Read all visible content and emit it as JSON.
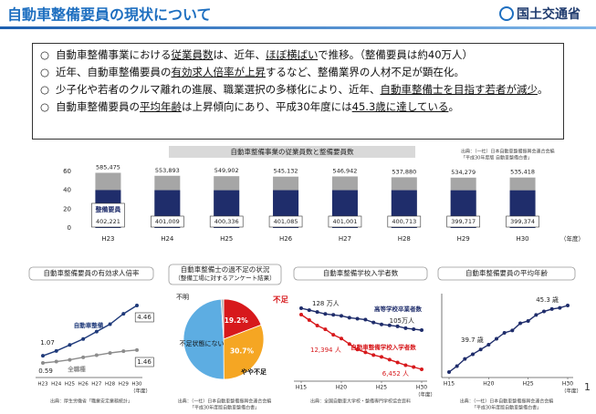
{
  "header": {
    "title": "自動車整備要員の現状について",
    "logo": "国土交通省"
  },
  "bullets": [
    {
      "runs": [
        {
          "text": "自動車整備事業における"
        },
        {
          "text": "従業員数",
          "underline": true
        },
        {
          "text": "は、近年、"
        },
        {
          "text": "ほぼ横ばい",
          "underline": true
        },
        {
          "text": "で推移。（整備要員は約40万人）"
        }
      ]
    },
    {
      "runs": [
        {
          "text": "近年、自動車整備要員の"
        },
        {
          "text": "有効求人倍率が上昇",
          "underline": true
        },
        {
          "text": "するなど、整備業界の人材不足が顕在化。"
        }
      ]
    },
    {
      "runs": [
        {
          "text": "少子化や若者のクルマ離れの進展、職業選択の多様化により、近年、"
        },
        {
          "text": "自動車整備士を目指す若者が減少",
          "underline": true
        },
        {
          "text": "。"
        }
      ]
    },
    {
      "runs": [
        {
          "text": "自動車整備要員の"
        },
        {
          "text": "平均年齢",
          "underline": true
        },
        {
          "text": "は上昇傾向にあり、平成30年度には"
        },
        {
          "text": "45.3歳に達している",
          "underline": true
        },
        {
          "text": "。"
        }
      ]
    }
  ],
  "chart_data": [
    {
      "type": "bar",
      "title": "自動車整備事業の従業員数と整備要員数",
      "source": [
        "出典：（一社）日本自動車整備振興会連合会編",
        "「平成30年度版 自動車整備白書」"
      ],
      "categories": [
        "H23",
        "H24",
        "H25",
        "H26",
        "H27",
        "H28",
        "H29",
        "H30"
      ],
      "x_unit": "（年度）",
      "ylim": [
        0,
        60
      ],
      "yticks": [
        0,
        20,
        40,
        60
      ],
      "series": [
        {
          "color": "#a6a6a6",
          "values": [
            58.5475,
            55.3893,
            54.9902,
            54.5132,
            54.6942,
            53.788,
            53.4279,
            53.5418
          ],
          "value_labels": [
            "585,475",
            "553,893",
            "549,902",
            "545,132",
            "546,942",
            "537,880",
            "534,279",
            "535,418"
          ]
        },
        {
          "name": "整備要員",
          "color": "#1f2d6b",
          "values": [
            40.2221,
            40.1009,
            40.0336,
            40.1085,
            40.1001,
            40.0713,
            39.9717,
            39.9374
          ],
          "value_labels": [
            "402,221",
            "401,009",
            "400,336",
            "401,085",
            "401,001",
            "400,713",
            "399,717",
            "399,374"
          ]
        }
      ]
    },
    {
      "type": "line",
      "title": "自動車整備要員の有効求人倍率",
      "source": [
        "出典：厚生労働省「職業安定業務統計」"
      ],
      "categories": [
        "H23",
        "H24",
        "H25",
        "H26",
        "H27",
        "H28",
        "H29",
        "H30"
      ],
      "x_unit": "（年度）",
      "series": [
        {
          "name": "自動車整備",
          "color": "#1f3a7a",
          "values": [
            1.07,
            1.4,
            1.8,
            2.2,
            2.7,
            3.2,
            3.9,
            4.46
          ],
          "value_labels": [
            "1.07",
            null,
            null,
            null,
            null,
            null,
            null,
            "4.46"
          ]
        },
        {
          "name": "全職種",
          "color": "#8c8c8c",
          "values": [
            0.59,
            0.68,
            0.8,
            0.97,
            1.11,
            1.26,
            1.38,
            1.46
          ],
          "value_labels": [
            "0.59",
            null,
            null,
            null,
            null,
            null,
            null,
            "1.46"
          ]
        }
      ]
    },
    {
      "type": "pie",
      "title": "自動車整備士の過不足の状況",
      "subtitle": "（整備工場に対するアンケート結果）",
      "source": [
        "出典：（一社）日本自動車整備振興会連合会編",
        "「平成30年度版自動車整備白書」"
      ],
      "categories": [
        "不足",
        "やや不足",
        "不足状態にない",
        "不明"
      ],
      "values": [
        19.2,
        30.7,
        49.1,
        1.0
      ],
      "value_labels": [
        "19.2%",
        "30.7%",
        null,
        null
      ],
      "colors": [
        "#d7191c",
        "#f5a623",
        "#5dade2",
        "#b0b0b0"
      ]
    },
    {
      "type": "line",
      "title": "自動車整備学校入学者数",
      "source": [
        "出典：全国自動車大学校・整備専門学校協会資料"
      ],
      "x": [
        15,
        16,
        17,
        18,
        19,
        20,
        21,
        22,
        23,
        24,
        25,
        26,
        27,
        28,
        29,
        30
      ],
      "xlim": [
        15,
        30
      ],
      "xticks": [
        {
          "value": 15,
          "label": "H15"
        },
        {
          "value": 20,
          "label": "H20"
        },
        {
          "value": 25,
          "label": "H25"
        },
        {
          "value": 30,
          "label": "H30"
        }
      ],
      "x_unit": "（年度）",
      "series": [
        {
          "name": "高等学校卒業者数",
          "color": "#1f2d6b",
          "values": [
            128,
            126,
            124,
            122,
            121,
            120,
            118,
            117,
            116,
            113,
            111,
            110,
            109,
            107,
            106,
            105
          ],
          "value_labels": [
            "128 万人",
            null,
            null,
            null,
            null,
            null,
            null,
            null,
            null,
            null,
            null,
            null,
            null,
            null,
            null,
            "105万人"
          ]
        },
        {
          "name": "自動車整備学校入学者数",
          "color": "#d7191c",
          "axis": "y2",
          "values": [
            12394,
            11800,
            11200,
            10800,
            10200,
            9800,
            9200,
            8600,
            8300,
            8000,
            7800,
            7500,
            7200,
            6900,
            6700,
            6452
          ],
          "value_labels": [
            "12,394 人",
            null,
            null,
            null,
            null,
            null,
            null,
            null,
            null,
            null,
            null,
            null,
            null,
            null,
            null,
            "6,452 人"
          ]
        }
      ]
    },
    {
      "type": "line",
      "title": "自動車整備要員の平均年齢",
      "source": [
        "出典：（一社）日本自動車整備振興会連合会編",
        "「平成30年度版自動車整備白書」"
      ],
      "x": [
        15,
        16,
        17,
        18,
        19,
        20,
        21,
        22,
        23,
        24,
        25,
        26,
        27,
        28,
        29,
        30
      ],
      "xlim": [
        15,
        30
      ],
      "xticks": [
        {
          "value": 15,
          "label": "H15"
        },
        {
          "value": 20,
          "label": "H20"
        },
        {
          "value": 25,
          "label": "H25"
        },
        {
          "value": 30,
          "label": "H30"
        }
      ],
      "x_unit": "（年度）",
      "series": [
        {
          "color": "#1f2d6b",
          "values": [
            39.7,
            40.2,
            40.8,
            41.2,
            41.6,
            42.0,
            42.5,
            43.0,
            43.2,
            43.8,
            44.0,
            44.5,
            44.8,
            45.0,
            45.1,
            45.3
          ],
          "value_labels": [
            "39.7 歳",
            null,
            null,
            null,
            null,
            null,
            null,
            null,
            null,
            null,
            null,
            null,
            null,
            null,
            null,
            "45.3 歳"
          ]
        }
      ]
    }
  ],
  "page_number": "1"
}
